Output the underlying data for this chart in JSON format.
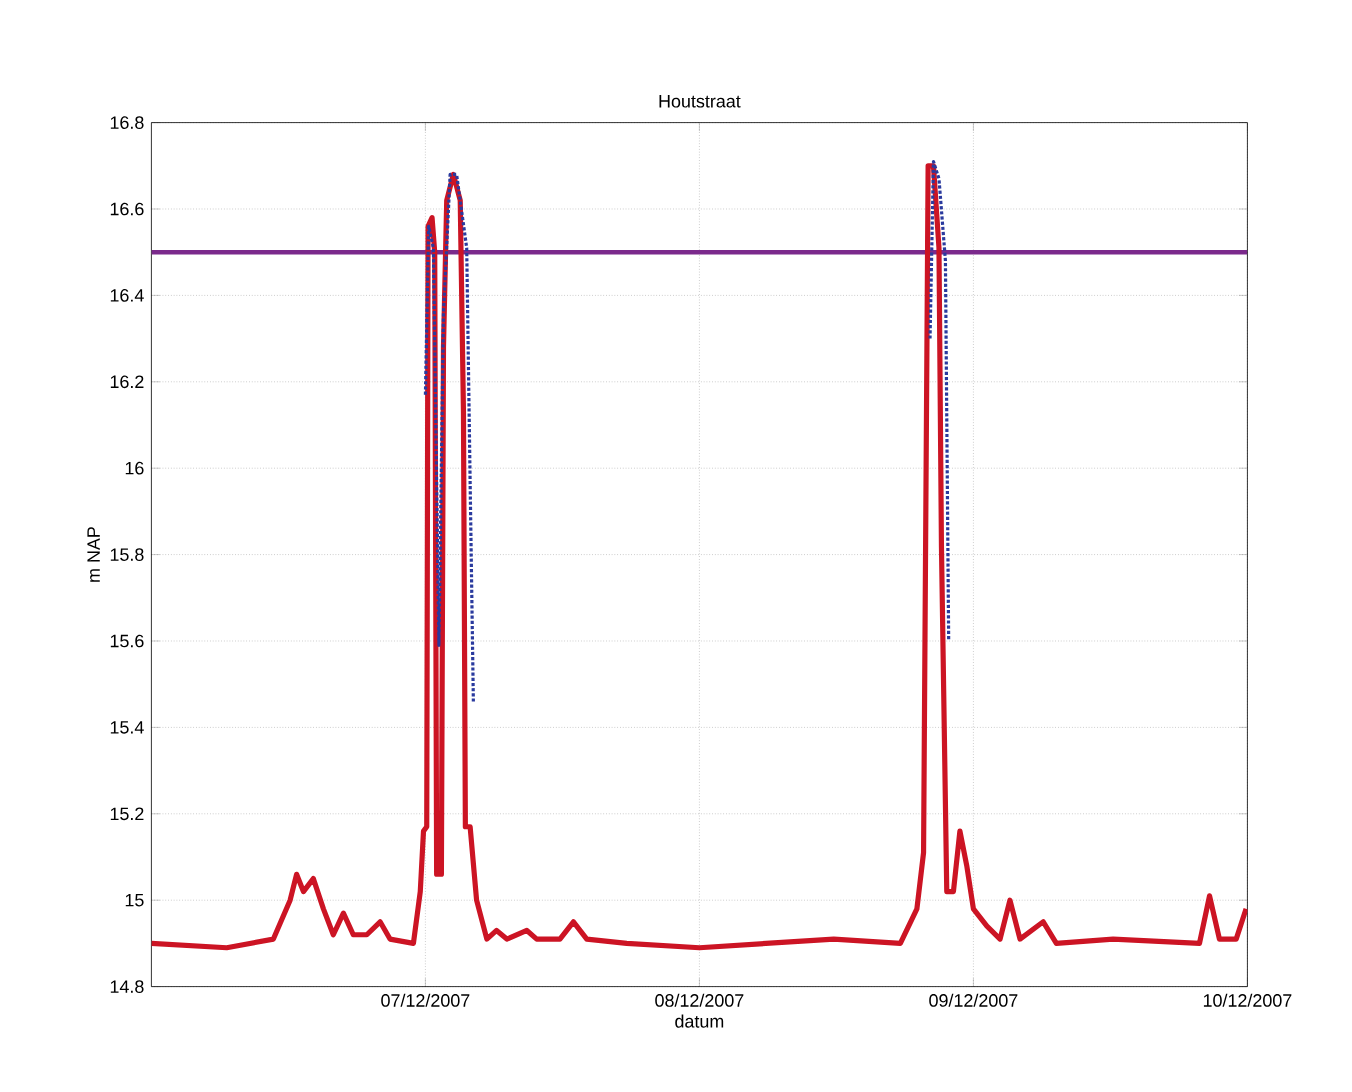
{
  "chart_data": {
    "type": "line",
    "title": "Houtstraat",
    "xlabel": "datum",
    "ylabel": "m NAP",
    "xlim": [
      "2007-12-06T00:00",
      "2007-12-10T00:00"
    ],
    "xticks": [
      {
        "value": "2007-12-07T00:00",
        "label": "07/12/2007"
      },
      {
        "value": "2007-12-08T00:00",
        "label": "08/12/2007"
      },
      {
        "value": "2007-12-09T00:00",
        "label": "09/12/2007"
      },
      {
        "value": "2007-12-10T00:00",
        "label": "10/12/2007"
      }
    ],
    "ylim": [
      14.8,
      16.8
    ],
    "yticks": [
      14.8,
      15,
      15.2,
      15.4,
      15.6,
      15.8,
      16,
      16.2,
      16.4,
      16.6,
      16.8
    ],
    "grid": true,
    "ref_lines": [
      {
        "axis": "y",
        "value": 16.5,
        "color": "#7b2a8c"
      }
    ],
    "series": [
      {
        "color": "#cc1424",
        "line_style": "solid",
        "x": [
          "2007-12-06T00:00",
          "2007-12-06T06:36",
          "2007-12-06T10:41",
          "2007-12-06T12:09",
          "2007-12-06T12:43",
          "2007-12-06T13:19",
          "2007-12-06T14:11",
          "2007-12-06T15:04",
          "2007-12-06T15:56",
          "2007-12-06T16:49",
          "2007-12-06T17:41",
          "2007-12-06T18:52",
          "2007-12-06T20:02",
          "2007-12-06T20:54",
          "2007-12-06T22:57",
          "2007-12-06T23:33",
          "2007-12-06T23:50",
          "2007-12-07T00:07",
          "2007-12-07T00:14",
          "2007-12-07T00:35",
          "2007-12-07T00:49",
          "2007-12-07T00:59",
          "2007-12-07T01:24",
          "2007-12-07T01:35",
          "2007-12-07T01:52",
          "2007-12-07T02:27",
          "2007-12-07T03:03",
          "2007-12-07T03:20",
          "2007-12-07T03:30",
          "2007-12-07T03:55",
          "2007-12-07T04:29",
          "2007-12-07T05:23",
          "2007-12-07T06:14",
          "2007-12-07T07:08",
          "2007-12-07T08:53",
          "2007-12-07T09:45",
          "2007-12-07T11:47",
          "2007-12-07T12:58",
          "2007-12-07T14:08",
          "2007-12-07T17:38",
          "2007-12-08T00:00",
          "2007-12-08T11:46",
          "2007-12-08T17:36",
          "2007-12-08T19:03",
          "2007-12-08T19:38",
          "2007-12-08T20:02",
          "2007-12-08T20:30",
          "2007-12-08T20:59",
          "2007-12-08T21:12",
          "2007-12-08T21:40",
          "2007-12-08T22:15",
          "2007-12-08T22:49",
          "2007-12-08T23:25",
          "2007-12-09T00:00",
          "2007-12-09T01:11",
          "2007-12-09T02:20",
          "2007-12-09T03:12",
          "2007-12-09T04:05",
          "2007-12-09T06:07",
          "2007-12-09T07:16",
          "2007-12-09T12:14",
          "2007-12-09T19:48",
          "2007-12-09T20:41",
          "2007-12-09T21:33",
          "2007-12-09T23:01",
          "2007-12-09T23:53"
        ],
        "values": [
          14.9,
          14.89,
          14.91,
          15.0,
          15.06,
          15.02,
          15.05,
          14.98,
          14.92,
          14.97,
          14.92,
          14.92,
          14.95,
          14.91,
          14.9,
          15.02,
          15.16,
          15.17,
          16.56,
          16.58,
          16.5,
          15.06,
          15.06,
          16.28,
          16.62,
          16.68,
          16.62,
          16.13,
          15.17,
          15.17,
          15.0,
          14.91,
          14.93,
          14.91,
          14.93,
          14.91,
          14.91,
          14.95,
          14.91,
          14.9,
          14.89,
          14.91,
          14.9,
          14.98,
          15.11,
          16.7,
          16.7,
          16.51,
          15.82,
          15.02,
          15.02,
          15.16,
          15.08,
          14.98,
          14.94,
          14.91,
          15.0,
          14.91,
          14.95,
          14.9,
          14.91,
          14.9,
          15.01,
          14.91,
          14.91,
          14.98
        ]
      },
      {
        "color": "#2a3a9e",
        "line_style": "dotted",
        "x": [
          "2007-12-07T00:00",
          "2007-12-07T00:17",
          "2007-12-07T00:42",
          "2007-12-07T01:11",
          "2007-12-07T01:35",
          "2007-12-07T02:10",
          "2007-12-07T02:44",
          "2007-12-07T03:37",
          "2007-12-07T04:12",
          "2007-12-08T12:00",
          "2007-12-08T20:12",
          "2007-12-08T20:30",
          "2007-12-08T20:59",
          "2007-12-08T21:33",
          "2007-12-08T21:50"
        ],
        "values": [
          16.17,
          16.56,
          16.51,
          15.59,
          16.36,
          16.68,
          16.68,
          16.51,
          15.46,
          null,
          16.3,
          16.71,
          16.67,
          16.48,
          15.6
        ]
      }
    ]
  }
}
